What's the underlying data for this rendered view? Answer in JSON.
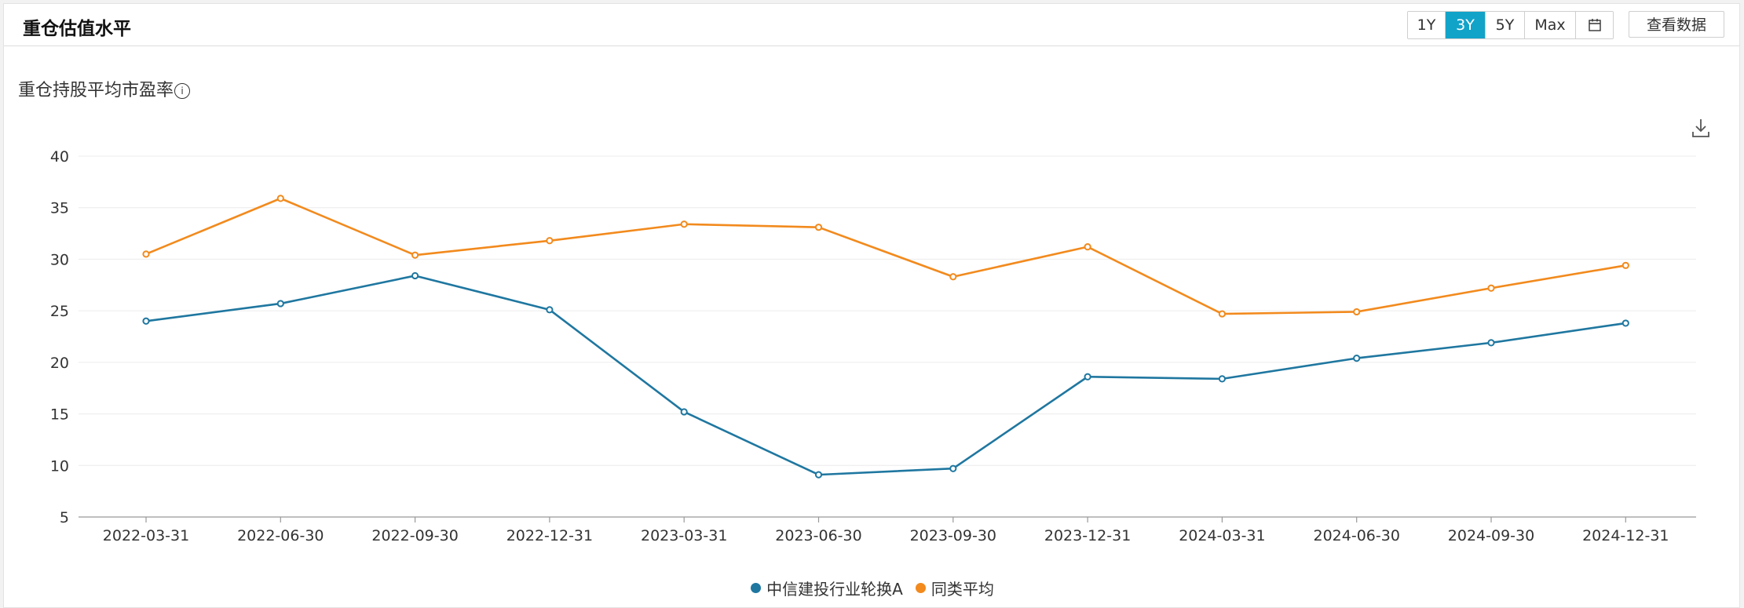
{
  "header": {
    "title": "重仓估值水平",
    "ranges": [
      "1Y",
      "3Y",
      "5Y",
      "Max"
    ],
    "active_range": "3Y",
    "calendar_icon": "calendar-icon",
    "view_data_label": "查看数据"
  },
  "subtitle": "重仓持股平均市盈率",
  "info_icon_glyph": "i",
  "download_icon": "download-icon",
  "colors": {
    "series1": "#1f77a0",
    "series2": "#f28a1d",
    "active": "#12a3c9"
  },
  "chart_data": {
    "type": "line",
    "title": "重仓持股平均市盈率",
    "x": [
      "2022-03-31",
      "2022-06-30",
      "2022-09-30",
      "2022-12-31",
      "2023-03-31",
      "2023-06-30",
      "2023-09-30",
      "2023-12-31",
      "2024-03-31",
      "2024-06-30",
      "2024-09-30",
      "2024-12-31"
    ],
    "series": [
      {
        "name": "中信建投行业轮换A",
        "color": "#1f77a0",
        "values": [
          24.0,
          25.7,
          28.4,
          25.1,
          15.2,
          9.1,
          9.7,
          18.6,
          18.4,
          20.4,
          21.9,
          23.8
        ]
      },
      {
        "name": "同类平均",
        "color": "#f28a1d",
        "values": [
          30.5,
          35.9,
          30.4,
          31.8,
          33.4,
          33.1,
          28.3,
          31.2,
          24.7,
          24.9,
          27.2,
          29.4
        ]
      }
    ],
    "ylim": [
      5,
      40
    ],
    "yticks": [
      5,
      10,
      15,
      20,
      25,
      30,
      35,
      40
    ],
    "grid": true,
    "legend": "bottom-center"
  }
}
